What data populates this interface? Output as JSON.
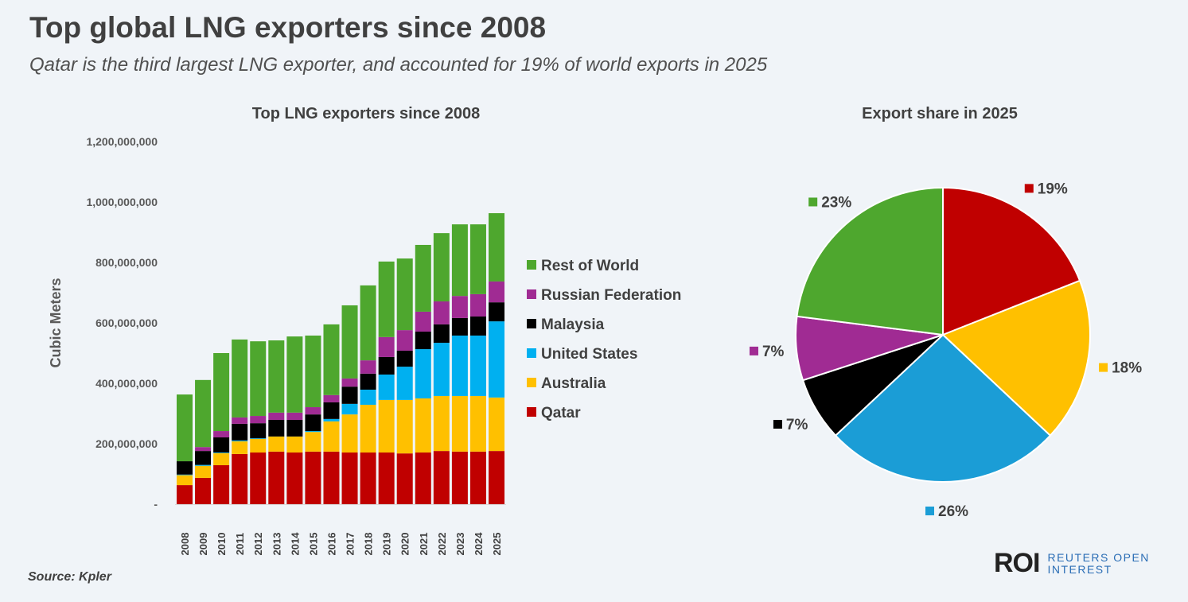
{
  "title": "Top global LNG exporters since 2008",
  "subtitle": "Qatar is the third largest LNG exporter, and accounted for 19% of world exports in 2025",
  "source": "Source:  Kpler",
  "logo": {
    "mark": "ROI",
    "line1": "REUTERS OPEN",
    "line2": "INTEREST"
  },
  "chart_data": [
    {
      "type": "bar",
      "stacked": true,
      "title": "Top LNG exporters since 2008",
      "xlabel": "",
      "ylabel": "Cubic Meters",
      "ylim": [
        0,
        1200000000
      ],
      "yticks": [
        0,
        200000000,
        400000000,
        600000000,
        800000000,
        1000000000,
        1200000000
      ],
      "ytick_labels": [
        "-",
        "200,000,000",
        "400,000,000",
        "600,000,000",
        "800,000,000",
        "1,000,000,000",
        "1,200,000,000"
      ],
      "legend_position": "right",
      "categories": [
        "2008",
        "2009",
        "2010",
        "2011",
        "2012",
        "2013",
        "2014",
        "2015",
        "2016",
        "2017",
        "2018",
        "2019",
        "2020",
        "2021",
        "2022",
        "2023",
        "2024",
        "2025"
      ],
      "series": [
        {
          "name": "Qatar",
          "color": "#C00000",
          "values": [
            63,
            87,
            129,
            166,
            171,
            174,
            171,
            174,
            174,
            171,
            171,
            171,
            168,
            171,
            176,
            174,
            174,
            176
          ]
        },
        {
          "name": "Australia",
          "color": "#FFC000",
          "values": [
            33,
            40,
            40,
            42,
            45,
            50,
            53,
            65,
            100,
            126,
            158,
            174,
            177,
            179,
            182,
            184,
            184,
            177
          ]
        },
        {
          "name": "United States",
          "color": "#00B0F0",
          "values": [
            2,
            3,
            2,
            3,
            2,
            0,
            0,
            3,
            8,
            35,
            50,
            84,
            110,
            163,
            176,
            200,
            200,
            252
          ]
        },
        {
          "name": "Malaysia",
          "color": "#000000",
          "values": [
            44,
            46,
            50,
            55,
            50,
            55,
            55,
            55,
            55,
            57,
            53,
            58,
            53,
            58,
            61,
            58,
            63,
            63
          ]
        },
        {
          "name": "Russian Federation",
          "color": "#A02B93",
          "values": [
            0,
            13,
            21,
            21,
            24,
            24,
            24,
            24,
            24,
            27,
            44,
            66,
            68,
            66,
            76,
            73,
            74,
            69
          ]
        },
        {
          "name": "Rest of World",
          "color": "#4EA72E",
          "values": [
            221,
            222,
            258,
            258,
            247,
            239,
            252,
            237,
            234,
            242,
            248,
            250,
            237,
            221,
            226,
            237,
            231,
            226
          ]
        }
      ],
      "value_unit": "million cubic meters"
    },
    {
      "type": "pie",
      "title": "Export share in 2025",
      "slices": [
        {
          "name": "Qatar",
          "value": 19,
          "label": "19%",
          "color": "#C00000"
        },
        {
          "name": "Australia",
          "value": 18,
          "label": "18%",
          "color": "#FFC000"
        },
        {
          "name": "United States",
          "value": 26,
          "label": "26%",
          "color": "#1B9DD6"
        },
        {
          "name": "Malaysia",
          "value": 7,
          "label": "7%",
          "color": "#000000"
        },
        {
          "name": "Russian Federation",
          "value": 7,
          "label": "7%",
          "color": "#A02B93"
        },
        {
          "name": "Rest of World",
          "value": 23,
          "label": "23%",
          "color": "#4EA72E"
        }
      ]
    }
  ]
}
